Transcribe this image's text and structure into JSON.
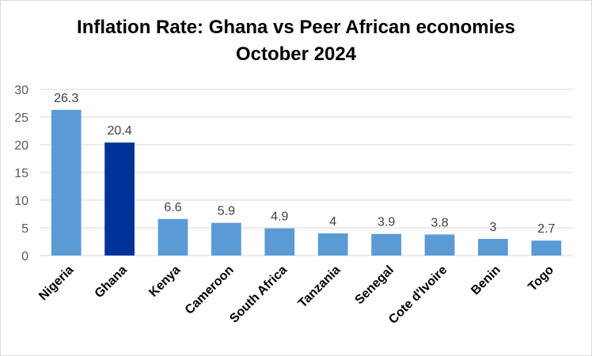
{
  "chart_data": {
    "type": "bar",
    "title": "Inflation Rate: Ghana vs Peer African economies",
    "subtitle": "October 2024",
    "xlabel": "",
    "ylabel": "",
    "categories": [
      "Nigeria",
      "Ghana",
      "Kenya",
      "Cameroon",
      "South Africa",
      "Tanzania",
      "Senegal",
      "Cote d'Ivoire",
      "Benin",
      "Togo"
    ],
    "values": [
      26.3,
      20.4,
      6.6,
      5.9,
      4.9,
      4,
      3.9,
      3.8,
      3,
      2.7
    ],
    "value_labels": [
      "26.3",
      "20.4",
      "6.6",
      "5.9",
      "4.9",
      "4",
      "3.9",
      "3.8",
      "3",
      "2.7"
    ],
    "ylim": [
      0,
      30
    ],
    "yticks": [
      "0",
      "5",
      "10",
      "15",
      "20",
      "25",
      "30"
    ],
    "grid": true,
    "legend": "none",
    "colors": {
      "default_bar": "#5b9bd5",
      "highlight_bar": "#003399",
      "highlight_category": "Ghana",
      "gridline": "#d9d9d9"
    }
  }
}
